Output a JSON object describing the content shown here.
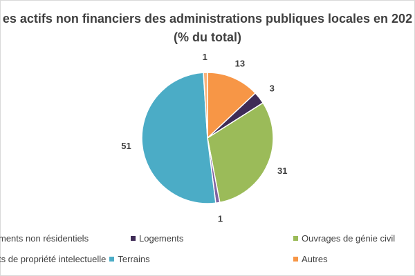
{
  "chart_data": {
    "type": "pie",
    "title_line1": "es actifs non financiers des administrations publiques locales en 202",
    "title_line2": "(% du total)",
    "slices": [
      {
        "name": "Autres",
        "value": 13,
        "label": "13",
        "color": "#F79646"
      },
      {
        "name": "Logements",
        "value": 3,
        "label": "3",
        "color": "#3F2C57"
      },
      {
        "name": "Ouvrages de génie civil",
        "value": 31,
        "label": "31",
        "color": "#9BBB59"
      },
      {
        "name": "ts de propriété intelectuelle",
        "value": 1,
        "label": "1",
        "color": "#8064A2"
      },
      {
        "name": "Terrains",
        "value": 51,
        "label": "51",
        "color": "#4BACC6"
      },
      {
        "name": "ments non résidentiels",
        "value": 1,
        "label": "1",
        "color": "#F9B27A"
      }
    ],
    "legend": [
      {
        "label": "ments non résidentiels",
        "color": "#F9B27A"
      },
      {
        "label": "Logements",
        "color": "#3F2C57"
      },
      {
        "label": "Ouvrages de génie civil",
        "color": "#9BBB59"
      },
      {
        "label": "ts de propriété intelectuelle",
        "color": "#8064A2"
      },
      {
        "label": "Terrains",
        "color": "#4BACC6"
      },
      {
        "label": "Autres",
        "color": "#F79646"
      }
    ],
    "legend_position": "bottom"
  }
}
